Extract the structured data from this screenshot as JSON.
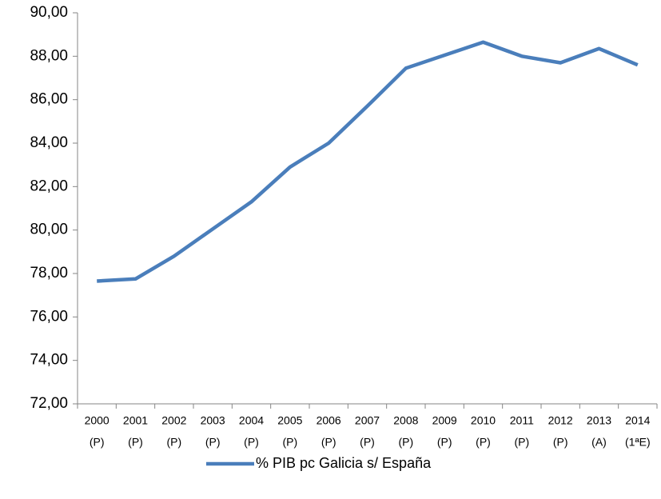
{
  "chart_data": {
    "type": "line",
    "categories": [
      [
        "2000",
        "(P)"
      ],
      [
        "2001",
        "(P)"
      ],
      [
        "2002",
        "(P)"
      ],
      [
        "2003",
        "(P)"
      ],
      [
        "2004",
        "(P)"
      ],
      [
        "2005",
        "(P)"
      ],
      [
        "2006",
        "(P)"
      ],
      [
        "2007",
        "(P)"
      ],
      [
        "2008",
        "(P)"
      ],
      [
        "2009",
        "(P)"
      ],
      [
        "2010",
        "(P)"
      ],
      [
        "2011",
        "(P)"
      ],
      [
        "2012",
        "(P)"
      ],
      [
        "2013",
        "(A)"
      ],
      [
        "2014",
        "(1ªE)"
      ]
    ],
    "series": [
      {
        "name": "% PIB pc Galicia s/ España",
        "color": "#4a7ebb",
        "values": [
          77.65,
          77.75,
          78.8,
          80.05,
          81.3,
          82.9,
          84.0,
          85.7,
          87.45,
          88.05,
          88.65,
          88.0,
          87.7,
          88.35,
          87.6
        ]
      }
    ],
    "ylim": [
      72,
      90
    ],
    "yticks": [
      {
        "value": 72,
        "label": "72,00"
      },
      {
        "value": 74,
        "label": "74,00"
      },
      {
        "value": 76,
        "label": "76,00"
      },
      {
        "value": 78,
        "label": "78,00"
      },
      {
        "value": 80,
        "label": "80,00"
      },
      {
        "value": 82,
        "label": "82,00"
      },
      {
        "value": 84,
        "label": "84,00"
      },
      {
        "value": 86,
        "label": "86,00"
      },
      {
        "value": 88,
        "label": "88,00"
      },
      {
        "value": 90,
        "label": "90,00"
      }
    ],
    "grid": false,
    "legend": "bottom"
  }
}
